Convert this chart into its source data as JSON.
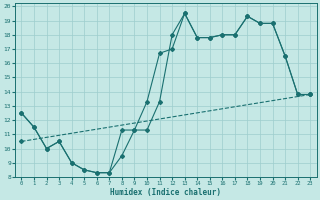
{
  "xlabel": "Humidex (Indice chaleur)",
  "xlim": [
    -0.5,
    23.5
  ],
  "ylim": [
    8,
    20.2
  ],
  "yticks": [
    8,
    9,
    10,
    11,
    12,
    13,
    14,
    15,
    16,
    17,
    18,
    19,
    20
  ],
  "xticks": [
    0,
    1,
    2,
    3,
    4,
    5,
    6,
    7,
    8,
    9,
    10,
    11,
    12,
    13,
    14,
    15,
    16,
    17,
    18,
    19,
    20,
    21,
    22,
    23
  ],
  "bg_color": "#c5e8e5",
  "grid_color": "#9ecece",
  "line_color": "#1a7070",
  "line1_x": [
    0,
    1,
    2,
    3,
    4,
    5,
    6,
    7,
    8,
    9,
    10,
    11,
    12,
    13,
    14,
    15,
    16,
    17,
    18,
    19,
    20,
    21,
    22,
    23
  ],
  "line1_y": [
    12.5,
    11.5,
    10.0,
    10.5,
    9.0,
    8.5,
    8.3,
    8.3,
    9.5,
    11.3,
    11.3,
    13.3,
    18.0,
    19.5,
    17.8,
    17.8,
    18.0,
    18.0,
    19.3,
    18.8,
    18.8,
    16.5,
    13.8,
    13.8
  ],
  "line2_x": [
    0,
    1,
    2,
    3,
    4,
    5,
    6,
    7,
    8,
    9,
    10,
    11,
    12,
    13,
    14,
    15,
    16,
    17,
    18,
    19,
    20,
    21,
    22,
    23
  ],
  "line2_y": [
    12.5,
    11.5,
    10.0,
    10.5,
    9.0,
    8.5,
    8.3,
    8.3,
    11.3,
    11.3,
    13.3,
    16.7,
    17.0,
    19.5,
    17.8,
    17.8,
    18.0,
    18.0,
    19.3,
    18.8,
    18.8,
    16.5,
    13.8,
    13.8
  ],
  "line3_x": [
    0,
    23
  ],
  "line3_y": [
    10.5,
    13.8
  ],
  "markersize": 2.0,
  "linewidth": 0.8
}
